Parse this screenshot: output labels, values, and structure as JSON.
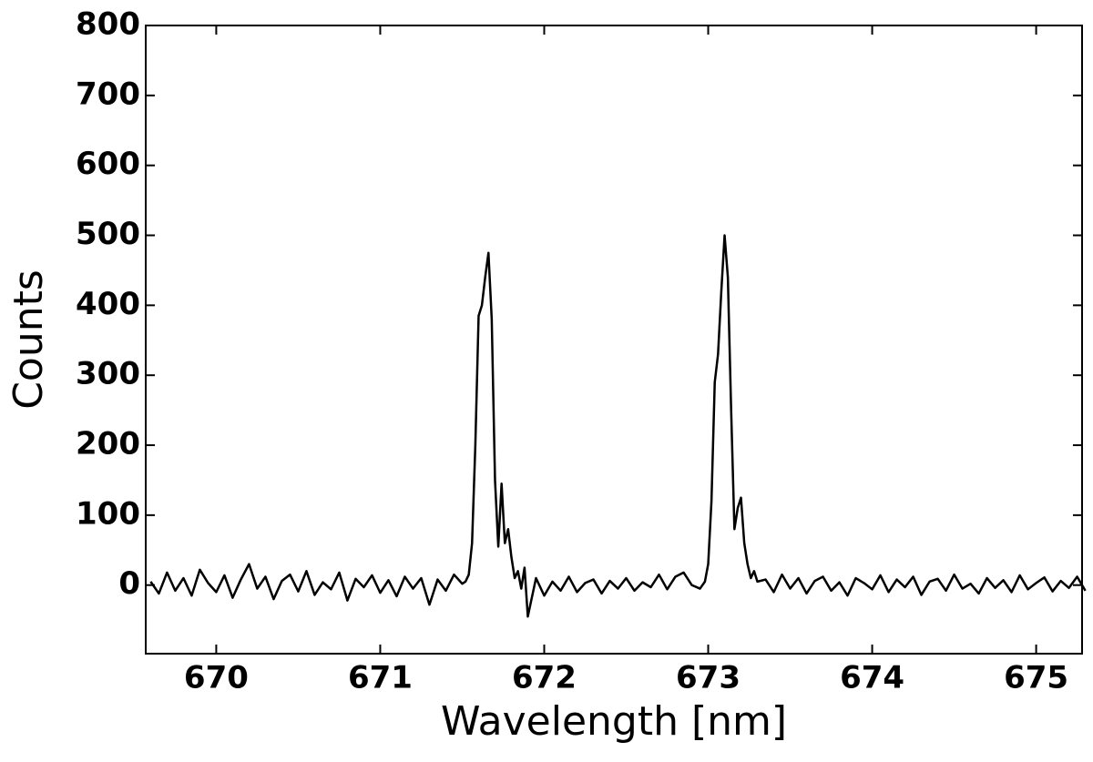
{
  "chart_data": {
    "type": "line",
    "xlabel": "Wavelength [nm]",
    "ylabel": "Counts",
    "xlim": [
      669.57,
      675.28
    ],
    "ylim": [
      -98,
      800
    ],
    "xticks": [
      670,
      671,
      672,
      673,
      674,
      675
    ],
    "yticks": [
      0,
      100,
      200,
      300,
      400,
      500,
      600,
      700,
      800
    ],
    "color": "#000000",
    "x": [
      669.6,
      669.65,
      669.7,
      669.75,
      669.8,
      669.85,
      669.9,
      669.95,
      670,
      670.05,
      670.1,
      670.15,
      670.2,
      670.25,
      670.3,
      670.35,
      670.4,
      670.45,
      670.5,
      670.55,
      670.6,
      670.65,
      670.7,
      670.75,
      670.8,
      670.85,
      670.9,
      670.95,
      671,
      671.05,
      671.1,
      671.15,
      671.2,
      671.25,
      671.3,
      671.35,
      671.4,
      671.45,
      671.5,
      671.52,
      671.54,
      671.56,
      671.58,
      671.6,
      671.62,
      671.64,
      671.66,
      671.68,
      671.7,
      671.72,
      671.74,
      671.76,
      671.78,
      671.8,
      671.82,
      671.84,
      671.86,
      671.88,
      671.9,
      671.95,
      672,
      672.05,
      672.1,
      672.15,
      672.2,
      672.25,
      672.3,
      672.35,
      672.4,
      672.45,
      672.5,
      672.55,
      672.6,
      672.65,
      672.7,
      672.75,
      672.8,
      672.85,
      672.9,
      672.95,
      672.98,
      673,
      673.02,
      673.04,
      673.06,
      673.08,
      673.1,
      673.12,
      673.14,
      673.16,
      673.18,
      673.2,
      673.22,
      673.24,
      673.26,
      673.28,
      673.3,
      673.35,
      673.4,
      673.45,
      673.5,
      673.55,
      673.6,
      673.65,
      673.7,
      673.75,
      673.8,
      673.85,
      673.9,
      673.95,
      674,
      674.05,
      674.1,
      674.15,
      674.2,
      674.25,
      674.3,
      674.35,
      674.4,
      674.45,
      674.5,
      674.55,
      674.6,
      674.65,
      674.7,
      674.75,
      674.8,
      674.85,
      674.9,
      674.95,
      675,
      675.05,
      675.1,
      675.15,
      675.2,
      675.25,
      675.3
    ],
    "values": [
      5,
      -12,
      18,
      -8,
      10,
      -15,
      22,
      3,
      -10,
      14,
      -18,
      8,
      30,
      -5,
      12,
      -20,
      6,
      15,
      -9,
      20,
      -14,
      4,
      -6,
      18,
      -22,
      9,
      -3,
      14,
      -11,
      7,
      -16,
      12,
      -5,
      10,
      -28,
      8,
      -8,
      15,
      2,
      5,
      15,
      60,
      200,
      385,
      400,
      440,
      475,
      380,
      150,
      55,
      145,
      60,
      80,
      40,
      10,
      20,
      -5,
      25,
      -45,
      10,
      -15,
      5,
      -8,
      12,
      -10,
      3,
      8,
      -12,
      6,
      -5,
      10,
      -8,
      4,
      -3,
      15,
      -6,
      12,
      18,
      0,
      -5,
      5,
      30,
      120,
      290,
      330,
      420,
      500,
      440,
      250,
      80,
      110,
      125,
      60,
      30,
      10,
      20,
      5,
      8,
      -10,
      15,
      -5,
      10,
      -12,
      6,
      12,
      -8,
      4,
      -15,
      10,
      3,
      -6,
      14,
      -10,
      8,
      -3,
      12,
      -14,
      5,
      9,
      -8,
      15,
      -5,
      2,
      -12,
      10,
      -4,
      7,
      -10,
      14,
      -6,
      3,
      11,
      -9,
      6,
      -4,
      12,
      -8
    ]
  }
}
